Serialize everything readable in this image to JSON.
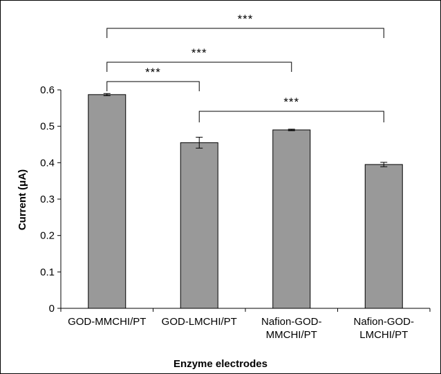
{
  "chart_data": {
    "type": "bar",
    "title": "",
    "xlabel": "Enzyme electrodes",
    "ylabel": "Current (μA)",
    "ylim": [
      0,
      0.6
    ],
    "yticks": [
      "0",
      "0.1",
      "0.2",
      "0.3",
      "0.4",
      "0.5",
      "0.6"
    ],
    "categories": [
      [
        "GOD-MMCHI/PT"
      ],
      [
        "GOD-LMCHI/PT"
      ],
      [
        "Nafion-GOD-",
        "MMCHI/PT"
      ],
      [
        "Nafion-GOD-",
        "LMCHI/PT"
      ]
    ],
    "values": [
      0.587,
      0.455,
      0.49,
      0.395
    ],
    "errors": [
      0.003,
      0.015,
      0.002,
      0.006
    ],
    "bar_color": "#999999",
    "significance": [
      {
        "from": 0,
        "to": 3,
        "label": "***"
      },
      {
        "from": 0,
        "to": 2,
        "label": "***"
      },
      {
        "from": 0,
        "to": 1,
        "label": "***"
      },
      {
        "from": 1,
        "to": 3,
        "label": "***"
      }
    ]
  }
}
